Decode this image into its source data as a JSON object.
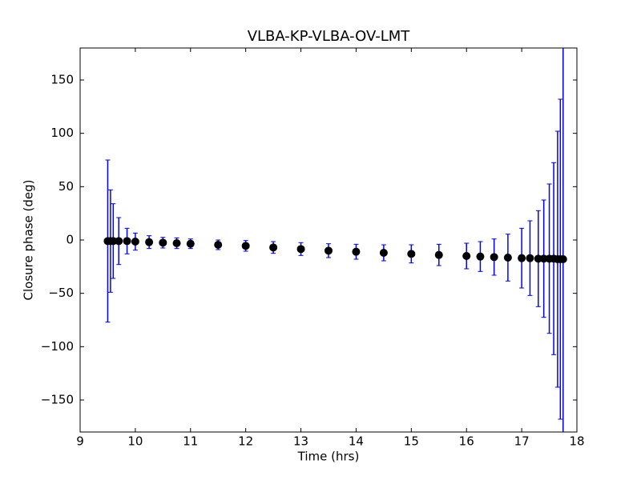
{
  "chart_data": {
    "type": "errorbar",
    "title": "VLBA-KP-VLBA-OV-LMT",
    "xlabel": "Time (hrs)",
    "ylabel": "Closure phase (deg)",
    "x": [
      9.5,
      9.55,
      9.6,
      9.7,
      9.85,
      10,
      10.25,
      10.5,
      10.75,
      11,
      11.5,
      12,
      12.5,
      13,
      13.5,
      14,
      14.5,
      15,
      15.5,
      16,
      16.25,
      16.5,
      16.75,
      17,
      17.15,
      17.3,
      17.4,
      17.5,
      17.58,
      17.65,
      17.7,
      17.75
    ],
    "values": [
      -1,
      -1,
      -1,
      -1,
      -1,
      -1.5,
      -2,
      -2.5,
      -3,
      -3.5,
      -4.5,
      -5.5,
      -7,
      -8.5,
      -10,
      -11,
      -12,
      -13,
      -14,
      -15,
      -15.5,
      -16,
      -16.5,
      -17,
      -17,
      -17.5,
      -17.5,
      -17.5,
      -17.5,
      -18,
      -18,
      -18
    ],
    "errors": [
      76,
      48,
      35,
      22,
      12,
      8,
      6,
      5,
      5,
      4.5,
      4.5,
      5,
      5.5,
      6,
      6.5,
      7,
      7.5,
      8.5,
      10,
      12,
      14,
      17,
      22,
      28,
      35,
      45,
      55,
      70,
      90,
      120,
      150,
      200
    ],
    "marker_color": "#000000",
    "error_color": "#0000ff",
    "xlim": [
      9,
      18
    ],
    "ylim": [
      -180,
      180
    ],
    "xticks": [
      9,
      10,
      11,
      12,
      13,
      14,
      15,
      16,
      17,
      18
    ],
    "yticks": [
      {
        "value": -150,
        "label": "−150"
      },
      {
        "value": -100,
        "label": "−100"
      },
      {
        "value": -50,
        "label": "−50"
      },
      0,
      50,
      100,
      150
    ]
  }
}
